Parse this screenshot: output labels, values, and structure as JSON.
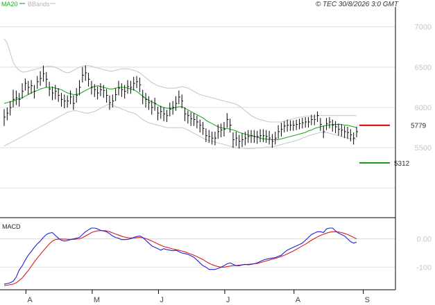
{
  "header": {
    "legend_ma": "MA20",
    "legend_bbands": "BBands",
    "copyright": "© TEC 30/8/2026 3:0 GMT"
  },
  "colors": {
    "ma": "#1faa1f",
    "bbands": "#c4c4c4",
    "price_bar": "#000000",
    "macd_line": "#1f1fd6",
    "signal_line": "#d61f1f",
    "resistance": "#cc0000",
    "support": "#1a9a1a",
    "grid": "#dddddd",
    "axis": "#000000"
  },
  "chart_data": [
    {
      "type": "ohlc",
      "title": "",
      "xlabel": "",
      "ylabel": "",
      "ylim": [
        4650,
        7230
      ],
      "y_ticks": [
        5500,
        6000,
        6500,
        7000
      ],
      "y_tick_labels": [
        "5500",
        "6000",
        "6500",
        "7000"
      ],
      "x_ticks": [
        {
          "label": "A",
          "index": 4
        },
        {
          "label": "M",
          "index": 26
        },
        {
          "label": "J",
          "index": 48
        },
        {
          "label": "J",
          "index": 70
        },
        {
          "label": "A",
          "index": 93
        },
        {
          "label": "S",
          "index": 116
        }
      ],
      "x_count": 118,
      "grid": true,
      "legend": "top-left",
      "series_names": [
        "MA20",
        "BBands"
      ],
      "close": [
        5880,
        5930,
        6000,
        6100,
        6120,
        6100,
        6200,
        6300,
        6250,
        6270,
        6200,
        6320,
        6360,
        6420,
        6350,
        6230,
        6180,
        6200,
        6150,
        6100,
        6080,
        6080,
        6130,
        6050,
        6150,
        6250,
        6400,
        6430,
        6350,
        6250,
        6220,
        6180,
        6220,
        6210,
        6150,
        6060,
        6080,
        6160,
        6240,
        6220,
        6200,
        6260,
        6250,
        6300,
        6320,
        6280,
        6130,
        6100,
        6060,
        6000,
        6050,
        5930,
        5950,
        5920,
        5900,
        5980,
        6000,
        6050,
        6130,
        6080,
        5920,
        5900,
        5860,
        5850,
        5820,
        5780,
        5740,
        5650,
        5640,
        5620,
        5620,
        5700,
        5720,
        5730,
        5850,
        5780,
        5600,
        5620,
        5580,
        5600,
        5620,
        5640,
        5650,
        5640,
        5640,
        5650,
        5650,
        5640,
        5620,
        5580,
        5620,
        5700,
        5730,
        5770,
        5780,
        5780,
        5780,
        5790,
        5800,
        5810,
        5820,
        5820,
        5850,
        5850,
        5900,
        5790,
        5700,
        5800,
        5820,
        5780,
        5760,
        5730,
        5720,
        5700,
        5690,
        5660,
        5620,
        5700
      ],
      "high": [
        5980,
        6000,
        6080,
        6220,
        6210,
        6180,
        6300,
        6360,
        6330,
        6340,
        6280,
        6390,
        6450,
        6520,
        6440,
        6320,
        6260,
        6280,
        6240,
        6180,
        6160,
        6150,
        6210,
        6150,
        6240,
        6340,
        6500,
        6520,
        6430,
        6330,
        6290,
        6260,
        6300,
        6280,
        6230,
        6150,
        6160,
        6240,
        6330,
        6300,
        6280,
        6340,
        6330,
        6380,
        6390,
        6370,
        6220,
        6180,
        6140,
        6090,
        6120,
        6010,
        6020,
        6000,
        5970,
        6060,
        6080,
        6140,
        6210,
        6160,
        6000,
        5960,
        5940,
        5930,
        5900,
        5850,
        5820,
        5740,
        5720,
        5700,
        5700,
        5790,
        5800,
        5820,
        5930,
        5860,
        5690,
        5700,
        5660,
        5680,
        5700,
        5720,
        5720,
        5720,
        5710,
        5730,
        5730,
        5720,
        5710,
        5670,
        5700,
        5780,
        5810,
        5830,
        5850,
        5840,
        5840,
        5850,
        5860,
        5870,
        5880,
        5880,
        5910,
        5910,
        5950,
        5870,
        5770,
        5870,
        5880,
        5850,
        5830,
        5800,
        5790,
        5770,
        5760,
        5730,
        5690,
        5760
      ],
      "low": [
        5770,
        5840,
        5900,
        6000,
        6030,
        6010,
        6110,
        6210,
        6160,
        6170,
        6110,
        6230,
        6270,
        6320,
        6250,
        6140,
        6090,
        6100,
        6070,
        6010,
        5990,
        6000,
        6040,
        5970,
        6060,
        6150,
        6310,
        6330,
        6260,
        6160,
        6130,
        6100,
        6140,
        6120,
        6060,
        5970,
        6000,
        6080,
        6150,
        6130,
        6110,
        6170,
        6170,
        6210,
        6240,
        6190,
        6040,
        6000,
        5970,
        5910,
        5960,
        5840,
        5860,
        5830,
        5820,
        5890,
        5910,
        5960,
        6040,
        5990,
        5830,
        5800,
        5770,
        5770,
        5740,
        5690,
        5660,
        5570,
        5560,
        5540,
        5530,
        5610,
        5630,
        5640,
        5750,
        5690,
        5500,
        5520,
        5490,
        5510,
        5530,
        5560,
        5560,
        5560,
        5550,
        5570,
        5570,
        5560,
        5540,
        5500,
        5540,
        5610,
        5640,
        5690,
        5700,
        5710,
        5710,
        5720,
        5730,
        5740,
        5750,
        5750,
        5780,
        5780,
        5820,
        5710,
        5620,
        5720,
        5740,
        5700,
        5680,
        5650,
        5640,
        5620,
        5610,
        5580,
        5540,
        5630
      ],
      "ma20": [
        6050,
        6060,
        6070,
        6080,
        6095,
        6110,
        6120,
        6140,
        6160,
        6180,
        6200,
        6210,
        6230,
        6240,
        6250,
        6250,
        6250,
        6240,
        6230,
        6220,
        6200,
        6180,
        6170,
        6160,
        6160,
        6170,
        6190,
        6210,
        6230,
        6250,
        6260,
        6270,
        6260,
        6250,
        6240,
        6230,
        6230,
        6240,
        6250,
        6250,
        6250,
        6240,
        6230,
        6220,
        6200,
        6170,
        6140,
        6110,
        6090,
        6070,
        6050,
        6030,
        6010,
        6000,
        5990,
        5990,
        5990,
        6000,
        6010,
        6010,
        5990,
        5970,
        5950,
        5930,
        5910,
        5890,
        5870,
        5840,
        5820,
        5800,
        5780,
        5760,
        5750,
        5740,
        5740,
        5730,
        5720,
        5710,
        5690,
        5680,
        5670,
        5660,
        5650,
        5640,
        5630,
        5620,
        5610,
        5610,
        5600,
        5600,
        5600,
        5600,
        5610,
        5620,
        5630,
        5640,
        5650,
        5660,
        5670,
        5680,
        5690,
        5710,
        5720,
        5740,
        5750,
        5760,
        5770,
        5780,
        5780,
        5790,
        5790,
        5790,
        5790,
        5780,
        5780,
        5770,
        5760,
        5750
      ],
      "bb_upper": [
        6850,
        6800,
        6680,
        6560,
        6500,
        6460,
        6440,
        6440,
        6450,
        6460,
        6470,
        6480,
        6490,
        6500,
        6510,
        6510,
        6510,
        6500,
        6480,
        6460,
        6440,
        6430,
        6440,
        6460,
        6480,
        6500,
        6510,
        6520,
        6520,
        6510,
        6500,
        6490,
        6480,
        6470,
        6460,
        6450,
        6450,
        6460,
        6470,
        6480,
        6480,
        6480,
        6470,
        6460,
        6450,
        6430,
        6400,
        6370,
        6340,
        6310,
        6290,
        6270,
        6260,
        6250,
        6240,
        6240,
        6240,
        6240,
        6250,
        6260,
        6250,
        6240,
        6220,
        6200,
        6180,
        6160,
        6150,
        6140,
        6130,
        6120,
        6110,
        6100,
        6090,
        6080,
        6070,
        6060,
        6050,
        6040,
        6020,
        5990,
        5960,
        5930,
        5900,
        5880,
        5860,
        5850,
        5840,
        5830,
        5820,
        5820,
        5820,
        5820,
        5820,
        5830,
        5840,
        5850,
        5860,
        5870,
        5880,
        5880,
        5890,
        5890,
        5890,
        5890,
        5900,
        5900,
        5900,
        5900,
        5900,
        5900,
        5900,
        5900,
        5900,
        5900,
        5900,
        5900,
        5900,
        5900
      ],
      "bb_lower": [
        5520,
        5540,
        5560,
        5580,
        5600,
        5620,
        5640,
        5660,
        5680,
        5700,
        5720,
        5740,
        5760,
        5780,
        5800,
        5820,
        5840,
        5860,
        5880,
        5900,
        5920,
        5940,
        5950,
        5960,
        5960,
        5950,
        5940,
        5930,
        5930,
        5940,
        5950,
        5970,
        5990,
        6010,
        6030,
        6040,
        6030,
        6010,
        6000,
        5980,
        5970,
        5950,
        5940,
        5930,
        5910,
        5880,
        5850,
        5830,
        5810,
        5800,
        5790,
        5780,
        5770,
        5760,
        5750,
        5750,
        5750,
        5750,
        5750,
        5750,
        5740,
        5720,
        5700,
        5680,
        5660,
        5640,
        5620,
        5600,
        5590,
        5580,
        5570,
        5560,
        5550,
        5540,
        5530,
        5520,
        5510,
        5500,
        5500,
        5500,
        5490,
        5490,
        5490,
        5490,
        5500,
        5500,
        5500,
        5510,
        5510,
        5510,
        5520,
        5530,
        5540,
        5550,
        5560,
        5570,
        5580,
        5590,
        5600,
        5620,
        5630,
        5650,
        5660,
        5670,
        5680,
        5690,
        5690,
        5690,
        5680,
        5670,
        5660,
        5650,
        5640,
        5630,
        5620,
        5610,
        5610,
        5600
      ],
      "annotations": [
        {
          "label": "5779",
          "value": 5779,
          "kind": "resistance"
        },
        {
          "label": "5312",
          "value": 5312,
          "kind": "support"
        }
      ]
    },
    {
      "type": "line",
      "title": "MACD",
      "xlabel": "",
      "ylabel": "",
      "ylim": [
        -170,
        60
      ],
      "y_ticks": [
        0,
        -100
      ],
      "y_tick_labels": [
        "0.00",
        "-100"
      ],
      "grid": true,
      "series": [
        {
          "name": "",
          "kind": "macd",
          "values": [
            -160,
            -158,
            -155,
            -150,
            -135,
            -110,
            -95,
            -75,
            -58,
            -45,
            -30,
            -18,
            -8,
            5,
            15,
            20,
            22,
            12,
            2,
            -5,
            -8,
            -6,
            -3,
            0,
            2,
            5,
            15,
            25,
            32,
            38,
            38,
            35,
            30,
            28,
            25,
            18,
            10,
            5,
            2,
            -3,
            -3,
            -2,
            0,
            5,
            8,
            10,
            5,
            -5,
            -15,
            -25,
            -30,
            -35,
            -40,
            -35,
            -38,
            -40,
            -42,
            -40,
            -45,
            -50,
            -52,
            -55,
            -60,
            -65,
            -75,
            -85,
            -95,
            -100,
            -108,
            -108,
            -108,
            -105,
            -100,
            -95,
            -88,
            -85,
            -90,
            -95,
            -95,
            -92,
            -90,
            -92,
            -90,
            -88,
            -85,
            -80,
            -75,
            -72,
            -70,
            -68,
            -66,
            -62,
            -58,
            -48,
            -40,
            -35,
            -30,
            -25,
            -20,
            -15,
            -5,
            5,
            15,
            20,
            25,
            25,
            22,
            35,
            38,
            38,
            28,
            20,
            15,
            10,
            0,
            -10,
            -15,
            -12
          ]
        },
        {
          "name": "",
          "kind": "signal",
          "values": [
            -165,
            -164,
            -162,
            -160,
            -155,
            -147,
            -138,
            -125,
            -112,
            -97,
            -82,
            -68,
            -55,
            -42,
            -30,
            -18,
            -8,
            -3,
            -1,
            -1,
            -1,
            -2,
            -2,
            -2,
            -1,
            0,
            4,
            10,
            16,
            22,
            26,
            28,
            29,
            29,
            28,
            25,
            21,
            17,
            13,
            9,
            6,
            4,
            3,
            3,
            4,
            5,
            4,
            1,
            -3,
            -8,
            -13,
            -18,
            -23,
            -27,
            -30,
            -33,
            -36,
            -38,
            -40,
            -43,
            -46,
            -50,
            -54,
            -58,
            -63,
            -68,
            -73,
            -80,
            -86,
            -91,
            -95,
            -98,
            -100,
            -100,
            -98,
            -96,
            -95,
            -94,
            -93,
            -92,
            -91,
            -90,
            -89,
            -88,
            -87,
            -84,
            -81,
            -78,
            -75,
            -72,
            -69,
            -66,
            -62,
            -58,
            -53,
            -48,
            -43,
            -37,
            -31,
            -25,
            -19,
            -12,
            -5,
            1,
            7,
            12,
            16,
            20,
            23,
            25,
            25,
            24,
            22,
            19,
            15,
            10,
            5,
            0
          ]
        }
      ]
    }
  ]
}
